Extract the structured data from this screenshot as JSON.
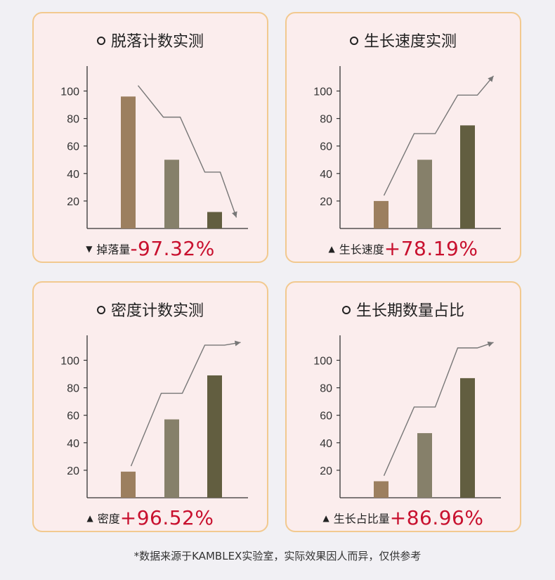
{
  "chart_data": [
    {
      "type": "bar",
      "title": "脱落计数实测",
      "categories": [
        "",
        "",
        ""
      ],
      "values": [
        96,
        50,
        12
      ],
      "yticks": [
        20,
        40,
        60,
        80,
        100
      ],
      "ylim": [
        0,
        112
      ],
      "trend": "down",
      "stat": {
        "arrow": "▼",
        "label": "掉落量",
        "value": "-97.32%"
      },
      "bar_colors": [
        "#9c7f5f",
        "#86806a",
        "#625e40"
      ]
    },
    {
      "type": "bar",
      "title": "生长速度实测",
      "categories": [
        "",
        "",
        ""
      ],
      "values": [
        20,
        50,
        75
      ],
      "yticks": [
        20,
        40,
        60,
        80,
        100
      ],
      "ylim": [
        0,
        112
      ],
      "trend": "up",
      "stat": {
        "arrow": "▲",
        "label": "生长速度",
        "value": "+78.19%"
      },
      "bar_colors": [
        "#9c7f5f",
        "#86806a",
        "#625e40"
      ]
    },
    {
      "type": "bar",
      "title": "密度计数实测",
      "categories": [
        "",
        "",
        ""
      ],
      "values": [
        19,
        57,
        89
      ],
      "yticks": [
        20,
        40,
        60,
        80,
        100
      ],
      "ylim": [
        0,
        112
      ],
      "trend": "up",
      "stat": {
        "arrow": "▲",
        "label": "密度",
        "value": "+96.52%"
      },
      "bar_colors": [
        "#9c7f5f",
        "#86806a",
        "#625e40"
      ]
    },
    {
      "type": "bar",
      "title": "生长期数量占比",
      "categories": [
        "",
        "",
        ""
      ],
      "values": [
        12,
        47,
        87
      ],
      "yticks": [
        20,
        40,
        60,
        80,
        100
      ],
      "ylim": [
        0,
        112
      ],
      "trend": "up",
      "stat": {
        "arrow": "▲",
        "label": "生长占比量",
        "value": "+86.96%"
      },
      "bar_colors": [
        "#9c7f5f",
        "#86806a",
        "#625e40"
      ]
    }
  ],
  "footnote": "*数据来源于KAMBLEX实验室，实际效果因人而异，仅供参考",
  "colors": {
    "card_bg": "#fbeded",
    "card_border": "#f2c98f",
    "stat_value": "#c8102e",
    "axis": "#333333",
    "trend_line": "#777777"
  }
}
